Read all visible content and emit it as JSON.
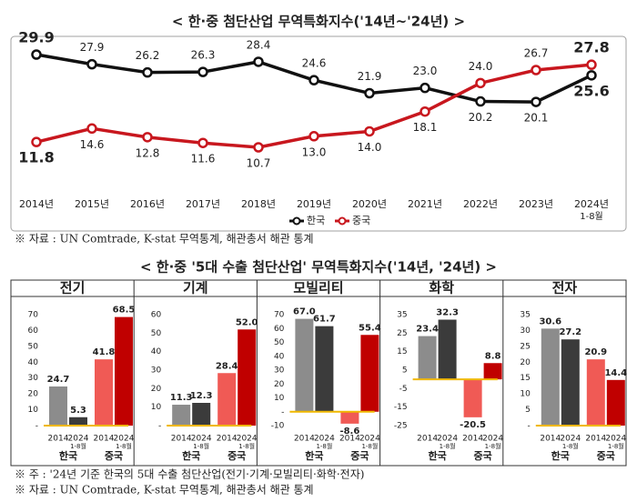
{
  "title": "< 한·중 첨단산업 무역특화지수('14년~'24년) >",
  "source_top": "※ 자료 : UN Comtrade, K-stat 무역통계, 해관총서 해관 통계",
  "title_bottom": "< 한·중 '5대 수출 첨단산업' 무역특화지수('14년, '24년) >",
  "note_bottom": "※ 주 : '24년 기준 한국의 5대 수출 첨단산업(전기·기계·모빌리티·화학·전자)",
  "source_bottom": "※ 자료 : UN Comtrade, K-stat 무역통계, 해관총서 해관 통계",
  "chart_data": [
    {
      "type": "line",
      "categories": [
        "2014년",
        "2015년",
        "2016년",
        "2017년",
        "2018년",
        "2019년",
        "2020년",
        "2021년",
        "2022년",
        "2023년",
        "2024년"
      ],
      "x_note": "1-8월",
      "series": [
        {
          "name": "한국",
          "color": "#111111",
          "values": [
            29.9,
            27.9,
            26.2,
            26.3,
            28.4,
            24.6,
            21.9,
            23.0,
            20.2,
            20.1,
            25.6
          ],
          "value_labels": [
            "29.9",
            "27.9",
            "26.2",
            "26.3",
            "28.4",
            "24.6",
            "21.9",
            "23.0",
            "20.2",
            "20.1",
            "25.6"
          ]
        },
        {
          "name": "중국",
          "color": "#c8171e",
          "values": [
            11.8,
            14.6,
            12.8,
            11.6,
            10.7,
            13.0,
            14.0,
            18.1,
            24.0,
            26.7,
            27.8
          ],
          "value_labels": [
            "11.8",
            "14.6",
            "12.8",
            "11.6",
            "10.7",
            "13.0",
            "14.0",
            "18.1",
            "24.0",
            "26.7",
            "27.8"
          ]
        }
      ]
    },
    {
      "type": "bar",
      "title": "전기",
      "groups": [
        "한국",
        "중국"
      ],
      "categories": [
        "2014",
        "2024",
        "2014",
        "2024"
      ],
      "x_note": "1-8월",
      "colors": [
        "#8c8c8c",
        "#3b3b3b",
        "#f05a55",
        "#c00000"
      ],
      "values": [
        24.7,
        5.3,
        41.8,
        68.5
      ],
      "value_labels": [
        "24.7",
        "5.3",
        "41.8",
        "68.5"
      ],
      "ylim": [
        0,
        70
      ],
      "yticks": [
        70,
        60,
        50,
        40,
        30,
        20,
        10,
        {
          "value": 0,
          "label": "-"
        }
      ]
    },
    {
      "type": "bar",
      "title": "기계",
      "groups": [
        "한국",
        "중국"
      ],
      "categories": [
        "2014",
        "2024",
        "2014",
        "2024"
      ],
      "x_note": "1-8월",
      "colors": [
        "#8c8c8c",
        "#3b3b3b",
        "#f05a55",
        "#c00000"
      ],
      "values": [
        11.3,
        12.3,
        28.4,
        52.0
      ],
      "value_labels": [
        "11.3",
        "12.3",
        "28.4",
        "52.0"
      ],
      "ylim": [
        0,
        60
      ],
      "yticks": [
        60,
        50,
        40,
        30,
        20,
        10,
        {
          "value": 0,
          "label": "-"
        }
      ]
    },
    {
      "type": "bar",
      "title": "모빌리티",
      "groups": [
        "한국",
        "중국"
      ],
      "categories": [
        "2014",
        "2024",
        "2014",
        "2024"
      ],
      "x_note": "1-8월",
      "colors": [
        "#8c8c8c",
        "#3b3b3b",
        "#f05a55",
        "#c00000"
      ],
      "values": [
        67.0,
        61.7,
        -8.6,
        55.4
      ],
      "value_labels": [
        "67.0",
        "61.7",
        "-8.6",
        "55.4"
      ],
      "ylim": [
        -10,
        70
      ],
      "yticks": [
        70,
        60,
        50,
        40,
        30,
        20,
        10,
        {
          "value": 0,
          "label": "-"
        },
        -10
      ]
    },
    {
      "type": "bar",
      "title": "화학",
      "groups": [
        "한국",
        "중국"
      ],
      "categories": [
        "2014",
        "2024",
        "2014",
        "2024"
      ],
      "x_note": "1-8월",
      "colors": [
        "#8c8c8c",
        "#3b3b3b",
        "#f05a55",
        "#c00000"
      ],
      "values": [
        23.4,
        32.3,
        -20.5,
        8.8
      ],
      "value_labels": [
        "23.4",
        "32.3",
        "-20.5",
        "8.8"
      ],
      "ylim": [
        -25,
        35
      ],
      "yticks": [
        35,
        25,
        15,
        5,
        -5,
        -15,
        -25
      ]
    },
    {
      "type": "bar",
      "title": "전자",
      "groups": [
        "한국",
        "중국"
      ],
      "categories": [
        "2014",
        "2024",
        "2014",
        "2024"
      ],
      "x_note": "1-8월",
      "colors": [
        "#8c8c8c",
        "#3b3b3b",
        "#f05a55",
        "#c00000"
      ],
      "values": [
        30.6,
        27.2,
        20.9,
        14.4
      ],
      "value_labels": [
        "30.6",
        "27.2",
        "20.9",
        "14.4"
      ],
      "ylim": [
        0,
        35
      ],
      "yticks": [
        35,
        30,
        25,
        20,
        15,
        10,
        5,
        {
          "value": 0,
          "label": "-"
        }
      ]
    }
  ]
}
